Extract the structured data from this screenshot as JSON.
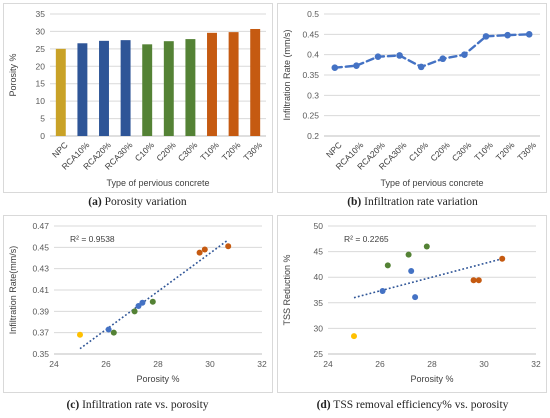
{
  "chart_data": [
    {
      "type": "bar",
      "caption_tag": "(a)",
      "caption_text": "Porosity variation",
      "xlabel": "Type of pervious concrete",
      "ylabel": "Porosity %",
      "ylim": [
        0,
        35
      ],
      "yticks": [
        0,
        5,
        10,
        15,
        20,
        25,
        30,
        35
      ],
      "grid": true,
      "categories": [
        "NPC",
        "RCA10%",
        "RCA20%",
        "RCA30%",
        "C10%",
        "C20%",
        "C30%",
        "T10%",
        "T20%",
        "T30%"
      ],
      "values": [
        25.0,
        26.6,
        27.3,
        27.5,
        26.3,
        27.2,
        27.8,
        29.6,
        29.8,
        30.7
      ],
      "colors": [
        "#c9a227",
        "#2e5597",
        "#2e5597",
        "#2e5597",
        "#548235",
        "#548235",
        "#548235",
        "#c55a11",
        "#c55a11",
        "#c55a11"
      ]
    },
    {
      "type": "line",
      "caption_tag": "(b)",
      "caption_text": "Infiltration rate variation",
      "xlabel": "Type of pervious concrete",
      "ylabel": "Infiltration Rate (mm/s)",
      "ylim": [
        0.2,
        0.5
      ],
      "yticks": [
        0.2,
        0.25,
        0.3,
        0.35,
        0.4,
        0.45,
        0.5
      ],
      "grid": true,
      "categories": [
        "NPC",
        "RCA10%",
        "RCA20%",
        "RCA30%",
        "C10%",
        "C20%",
        "C30%",
        "T10%",
        "T20%",
        "T30%"
      ],
      "values": [
        0.368,
        0.373,
        0.395,
        0.398,
        0.37,
        0.39,
        0.4,
        0.445,
        0.448,
        0.45
      ],
      "color": "#4472c4"
    },
    {
      "type": "scatter",
      "caption_tag": "(c)",
      "caption_text": "Infiltration rate vs. porosity",
      "xlabel": "Porosity %",
      "ylabel": "Infiltration Rate(mm/s)",
      "xlim": [
        24,
        32
      ],
      "xticks": [
        24,
        26,
        28,
        30,
        32
      ],
      "ylim": [
        0.35,
        0.47
      ],
      "yticks": [
        0.35,
        0.37,
        0.39,
        0.41,
        0.43,
        0.45,
        0.47
      ],
      "annotation": "R² = 0.9538",
      "trendline": {
        "x": [
          25.0,
          30.7
        ],
        "y": [
          0.355,
          0.457
        ]
      },
      "points": [
        {
          "x": 25.0,
          "y": 0.368,
          "color": "#ffc000"
        },
        {
          "x": 26.1,
          "y": 0.373,
          "color": "#4472c4"
        },
        {
          "x": 26.3,
          "y": 0.37,
          "color": "#548235"
        },
        {
          "x": 27.1,
          "y": 0.39,
          "color": "#548235"
        },
        {
          "x": 27.25,
          "y": 0.395,
          "color": "#4472c4"
        },
        {
          "x": 27.4,
          "y": 0.398,
          "color": "#4472c4"
        },
        {
          "x": 27.8,
          "y": 0.399,
          "color": "#548235"
        },
        {
          "x": 29.6,
          "y": 0.445,
          "color": "#c55a11"
        },
        {
          "x": 29.8,
          "y": 0.448,
          "color": "#c55a11"
        },
        {
          "x": 30.7,
          "y": 0.451,
          "color": "#c55a11"
        }
      ]
    },
    {
      "type": "scatter",
      "caption_tag": "(d)",
      "caption_text": "TSS removal efficiency% vs. porosity",
      "xlabel": "Porosity %",
      "ylabel": "TSS Reduction %",
      "xlim": [
        24,
        32
      ],
      "xticks": [
        24,
        26,
        28,
        30,
        32
      ],
      "ylim": [
        25,
        50
      ],
      "yticks": [
        25,
        30,
        35,
        40,
        45,
        50
      ],
      "annotation": "R² = 0.2265",
      "trendline": {
        "x": [
          25.0,
          30.7
        ],
        "y": [
          36.0,
          43.6
        ]
      },
      "points": [
        {
          "x": 25.0,
          "y": 28.5,
          "color": "#ffc000"
        },
        {
          "x": 26.1,
          "y": 37.3,
          "color": "#4472c4"
        },
        {
          "x": 26.3,
          "y": 42.3,
          "color": "#548235"
        },
        {
          "x": 27.1,
          "y": 44.4,
          "color": "#548235"
        },
        {
          "x": 27.2,
          "y": 41.2,
          "color": "#4472c4"
        },
        {
          "x": 27.35,
          "y": 36.1,
          "color": "#4472c4"
        },
        {
          "x": 27.8,
          "y": 46.0,
          "color": "#548235"
        },
        {
          "x": 29.6,
          "y": 39.4,
          "color": "#c55a11"
        },
        {
          "x": 29.8,
          "y": 39.4,
          "color": "#c55a11"
        },
        {
          "x": 30.7,
          "y": 43.6,
          "color": "#c55a11"
        }
      ]
    }
  ]
}
